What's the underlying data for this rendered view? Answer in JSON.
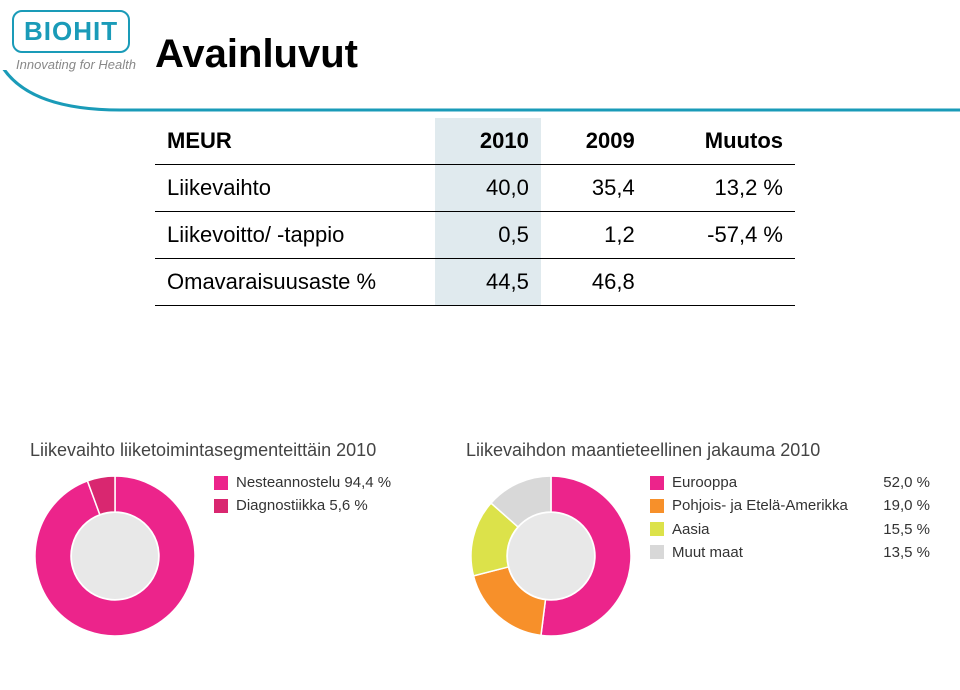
{
  "logo": {
    "text": "BIOHIT",
    "tagline": "Innovating for Health",
    "color": "#1a9bb8"
  },
  "title": "Avainluvut",
  "curve_color": "#1a9bb8",
  "table": {
    "highlight_bg": "#e0eaee",
    "border_color": "#000000",
    "font_size": 22,
    "highlight_col_index": 1,
    "columns": [
      "MEUR",
      "2010",
      "2009",
      "Muutos"
    ],
    "rows": [
      [
        "Liikevaihto",
        "40,0",
        "35,4",
        "13,2 %"
      ],
      [
        "Liikevoitto/ -tappio",
        "0,5",
        "1,2",
        "-57,4 %"
      ],
      [
        "Omavaraisuusaste %",
        "44,5",
        "46,8",
        ""
      ]
    ]
  },
  "chart_a": {
    "type": "pie",
    "title": "Liikevaihto liiketoimintasegmenteittäin 2010",
    "title_fontsize": 18,
    "title_color": "#444444",
    "inner_radius_ratio": 0.55,
    "center_color": "#e8e8e8",
    "slices": [
      {
        "label": "Nesteannostelu",
        "pct": "94,4 %",
        "value": 94.4,
        "color": "#ec248b"
      },
      {
        "label": "Diagnostiikka",
        "pct": "5,6 %",
        "value": 5.6,
        "color": "#d92770"
      }
    ]
  },
  "chart_b": {
    "type": "pie",
    "title": "Liikevaihdon maantieteellinen jakauma 2010",
    "title_fontsize": 18,
    "title_color": "#444444",
    "inner_radius_ratio": 0.55,
    "center_color": "#e8e8e8",
    "slices": [
      {
        "label": "Eurooppa",
        "pct": "52,0 %",
        "value": 52.0,
        "color": "#ec248b"
      },
      {
        "label": "Pohjois- ja Etelä-Amerikka",
        "pct": "19,0 %",
        "value": 19.0,
        "color": "#f7902a"
      },
      {
        "label": "Aasia",
        "pct": "15,5 %",
        "value": 15.5,
        "color": "#dce24a"
      },
      {
        "label": "Muut maat",
        "pct": "13,5 %",
        "value": 13.5,
        "color": "#d8d8d8"
      }
    ]
  }
}
